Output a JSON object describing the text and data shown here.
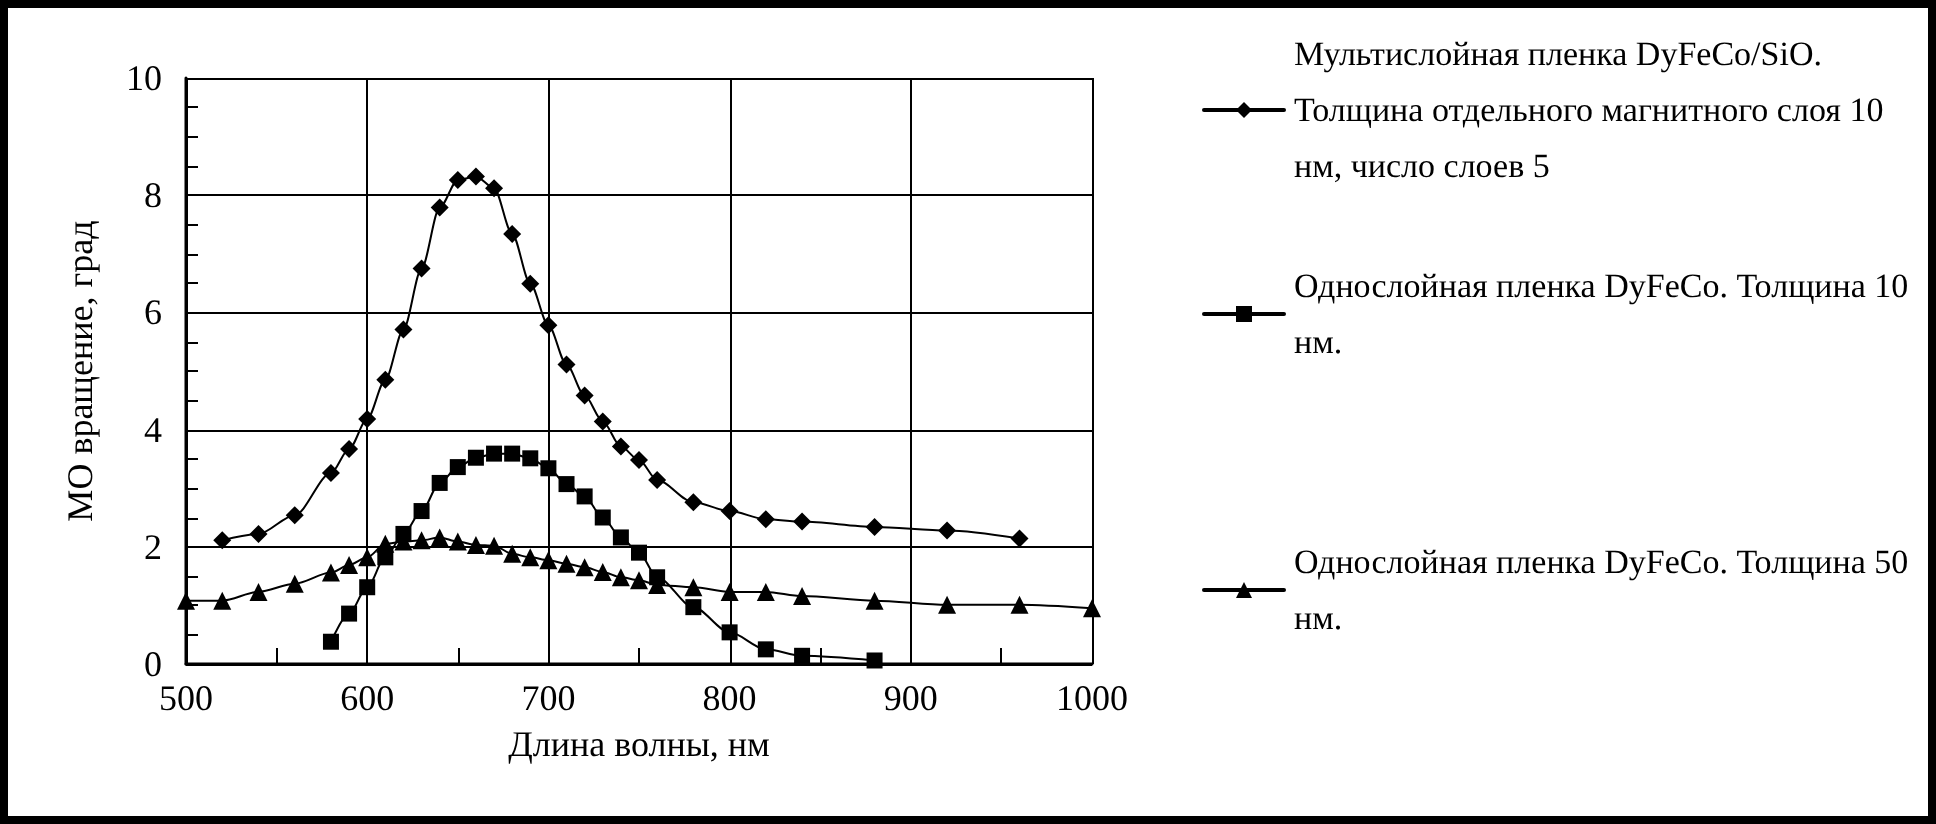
{
  "chart_data": {
    "type": "line",
    "xlabel": "Длина волны, нм",
    "ylabel": "МО вращение, град",
    "xlim": [
      500,
      1000
    ],
    "xticks": [
      500,
      600,
      700,
      800,
      900,
      1000
    ],
    "ylim": [
      0,
      10
    ],
    "yticks": [
      0,
      2,
      4,
      6,
      8,
      10
    ],
    "grid": true,
    "legend": "right",
    "line_style": "solid",
    "series": [
      {
        "name": "Мультислойная пленка DyFeCo/SiO. Толщина отдельного магнитного слоя 10 нм, число слоев 5",
        "color": "#000000",
        "marker": "diamond",
        "x": [
          520,
          540,
          560,
          580,
          590,
          600,
          610,
          620,
          630,
          640,
          650,
          660,
          670,
          680,
          690,
          700,
          710,
          720,
          730,
          740,
          750,
          760,
          780,
          800,
          820,
          840,
          880,
          920,
          960
        ],
        "values": [
          2.11,
          2.22,
          2.54,
          3.26,
          3.67,
          4.18,
          4.85,
          5.71,
          6.75,
          7.79,
          8.26,
          8.32,
          8.12,
          7.34,
          6.49,
          5.78,
          5.11,
          4.58,
          4.14,
          3.71,
          3.48,
          3.14,
          2.76,
          2.61,
          2.47,
          2.43,
          2.34,
          2.28,
          2.14
        ]
      },
      {
        "name": "Однослойная пленка DyFeCo. Толщина 10 нм.",
        "color": "#000000",
        "marker": "square",
        "x": [
          580,
          590,
          600,
          610,
          620,
          630,
          640,
          650,
          660,
          670,
          680,
          690,
          700,
          710,
          720,
          730,
          740,
          750,
          760,
          780,
          800,
          820,
          840,
          880
        ],
        "values": [
          0.38,
          0.86,
          1.31,
          1.82,
          2.22,
          2.61,
          3.09,
          3.36,
          3.52,
          3.59,
          3.59,
          3.51,
          3.34,
          3.07,
          2.86,
          2.5,
          2.16,
          1.9,
          1.48,
          0.97,
          0.54,
          0.25,
          0.14,
          0.06
        ]
      },
      {
        "name": "Однослойная пленка DyFeCo. Толщина 50 нм.",
        "color": "#000000",
        "marker": "triangle",
        "x": [
          500,
          520,
          540,
          560,
          580,
          590,
          600,
          610,
          620,
          630,
          640,
          650,
          660,
          670,
          680,
          690,
          700,
          710,
          720,
          730,
          740,
          750,
          760,
          780,
          800,
          820,
          840,
          880,
          920,
          960,
          1000
        ],
        "values": [
          1.08,
          1.08,
          1.23,
          1.37,
          1.56,
          1.69,
          1.82,
          2.05,
          2.09,
          2.11,
          2.16,
          2.09,
          2.03,
          2.02,
          1.88,
          1.82,
          1.77,
          1.71,
          1.65,
          1.57,
          1.48,
          1.43,
          1.35,
          1.31,
          1.23,
          1.23,
          1.16,
          1.08,
          1.01,
          1.01,
          0.95
        ]
      }
    ]
  }
}
